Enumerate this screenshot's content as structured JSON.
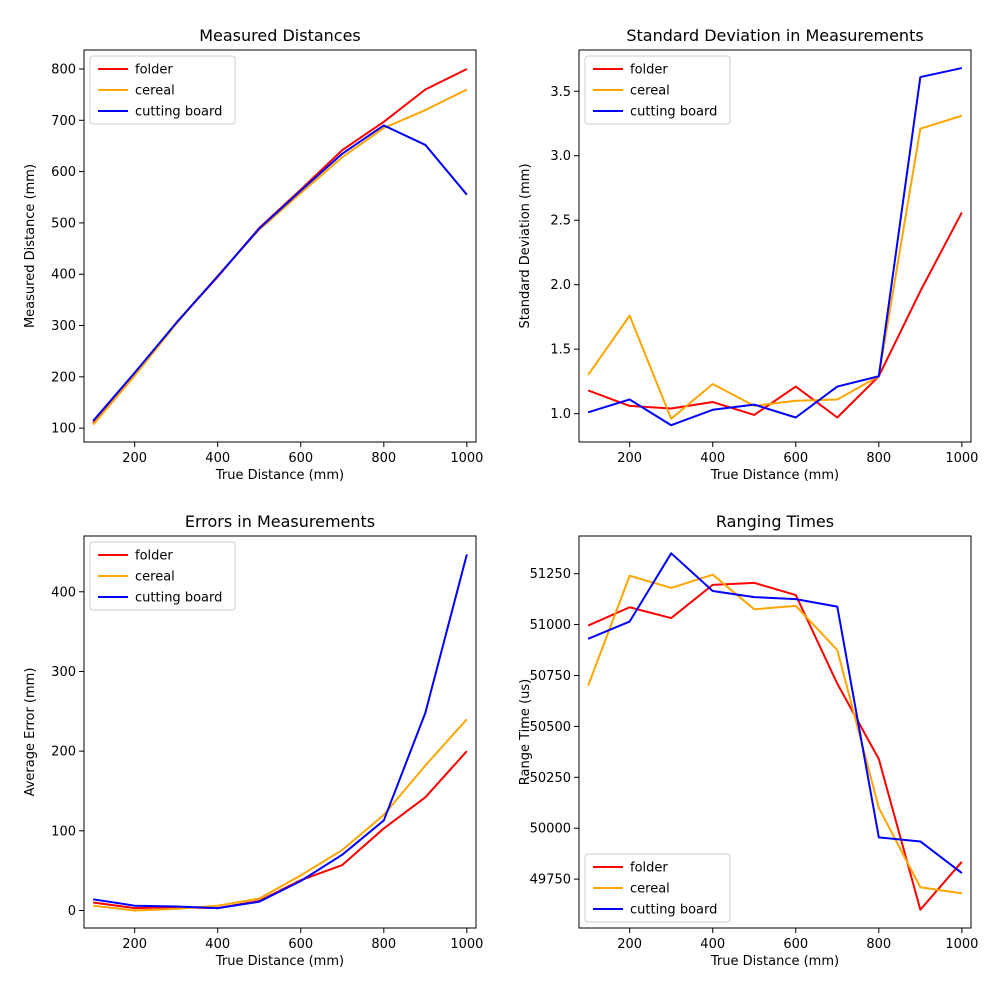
{
  "chart_data": [
    {
      "type": "line",
      "title": "Measured Distances",
      "xlabel": "True Distance (mm)",
      "ylabel": "Measured Distance (mm)",
      "x": [
        100,
        200,
        300,
        400,
        500,
        600,
        700,
        800,
        900,
        1000
      ],
      "xlim": [
        78,
        1022
      ],
      "ylim": [
        73,
        837
      ],
      "xticks": [
        200,
        400,
        600,
        800,
        1000
      ],
      "yticks": [
        100,
        200,
        300,
        400,
        500,
        600,
        700,
        800
      ],
      "legend_position": "upper-left",
      "series": [
        {
          "name": "folder",
          "color": "#ff0000",
          "values": [
            110,
            205,
            305,
            395,
            490,
            565,
            642,
            697,
            760,
            800
          ]
        },
        {
          "name": "cereal",
          "color": "#ffa500",
          "values": [
            107,
            202,
            303,
            397,
            487,
            558,
            628,
            685,
            720,
            760
          ]
        },
        {
          "name": "cutting board",
          "color": "#0000ff",
          "values": [
            114,
            208,
            305,
            396,
            489,
            563,
            635,
            690,
            652,
            555
          ]
        }
      ]
    },
    {
      "type": "line",
      "title": "Standard Deviation in Measurements",
      "xlabel": "True Distance (mm)",
      "ylabel": "Standard Deviation (mm)",
      "x": [
        100,
        200,
        300,
        400,
        500,
        600,
        700,
        800,
        900,
        1000
      ],
      "xlim": [
        78,
        1022
      ],
      "ylim": [
        0.78,
        3.82
      ],
      "xticks": [
        200,
        400,
        600,
        800,
        1000
      ],
      "yticks": [
        1.0,
        1.5,
        2.0,
        2.5,
        3.0,
        3.5
      ],
      "ytick_labels": [
        "1.0",
        "1.5",
        "2.0",
        "2.5",
        "3.0",
        "3.5"
      ],
      "legend_position": "upper-left",
      "series": [
        {
          "name": "folder",
          "color": "#ff0000",
          "values": [
            1.18,
            1.06,
            1.04,
            1.09,
            0.99,
            1.21,
            0.97,
            1.29,
            1.95,
            2.56
          ]
        },
        {
          "name": "cereal",
          "color": "#ffa500",
          "values": [
            1.3,
            1.76,
            0.96,
            1.23,
            1.06,
            1.1,
            1.11,
            1.29,
            3.21,
            3.31
          ]
        },
        {
          "name": "cutting board",
          "color": "#0000ff",
          "values": [
            1.01,
            1.11,
            0.91,
            1.03,
            1.07,
            0.97,
            1.21,
            1.29,
            3.61,
            3.68
          ]
        }
      ]
    },
    {
      "type": "line",
      "title": "Errors in Measurements",
      "xlabel": "True Distance (mm)",
      "ylabel": "Average Error (mm)",
      "x": [
        100,
        200,
        300,
        400,
        500,
        600,
        700,
        800,
        900,
        1000
      ],
      "xlim": [
        78,
        1022
      ],
      "ylim": [
        -22,
        470
      ],
      "xticks": [
        200,
        400,
        600,
        800,
        1000
      ],
      "yticks": [
        0,
        100,
        200,
        300,
        400
      ],
      "legend_position": "upper-left",
      "series": [
        {
          "name": "folder",
          "color": "#ff0000",
          "values": [
            10,
            3,
            4,
            3,
            12,
            38,
            57,
            103,
            142,
            200
          ]
        },
        {
          "name": "cereal",
          "color": "#ffa500",
          "values": [
            6,
            0,
            2,
            6,
            15,
            44,
            76,
            120,
            182,
            240
          ]
        },
        {
          "name": "cutting board",
          "color": "#0000ff",
          "values": [
            14,
            6,
            5,
            3,
            11,
            37,
            70,
            113,
            248,
            447
          ]
        }
      ]
    },
    {
      "type": "line",
      "title": "Ranging Times",
      "xlabel": "True Distance (mm)",
      "ylabel": "Range Time (us)",
      "x": [
        100,
        200,
        300,
        400,
        500,
        600,
        700,
        800,
        900,
        1000
      ],
      "xlim": [
        78,
        1022
      ],
      "ylim": [
        49510,
        51435
      ],
      "xticks": [
        200,
        400,
        600,
        800,
        1000
      ],
      "yticks": [
        49750,
        50000,
        50250,
        50500,
        50750,
        51000,
        51250
      ],
      "legend_position": "lower-left",
      "series": [
        {
          "name": "folder",
          "color": "#ff0000",
          "values": [
            50995,
            51085,
            51032,
            51195,
            51205,
            51145,
            50710,
            50340,
            49600,
            49835
          ]
        },
        {
          "name": "cereal",
          "color": "#ffa500",
          "values": [
            50700,
            51240,
            51180,
            51245,
            51075,
            51092,
            50875,
            50100,
            49710,
            49680
          ]
        },
        {
          "name": "cutting board",
          "color": "#0000ff",
          "values": [
            50930,
            51015,
            51350,
            51165,
            51135,
            51125,
            51088,
            49955,
            49935,
            49780
          ]
        }
      ]
    }
  ]
}
